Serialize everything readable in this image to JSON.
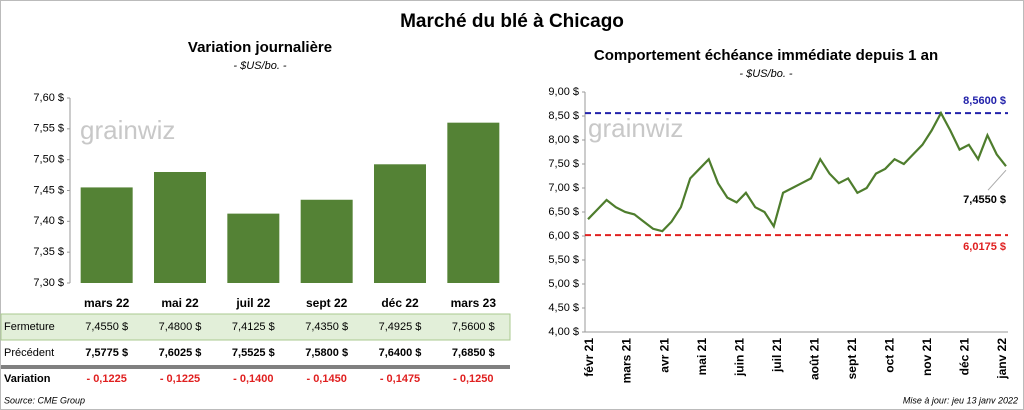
{
  "title": "Marché du blé à Chicago",
  "watermark": "grainwiz",
  "source": "Source: CME Group",
  "updated": "Mise à jour: jeu 13 janv 2022",
  "chart_data": [
    {
      "type": "bar",
      "title": "Variation journalière",
      "subtitle": "- $US/bo. -",
      "categories": [
        "mars 22",
        "mai 22",
        "juil 22",
        "sept 22",
        "déc 22",
        "mars 23"
      ],
      "values": [
        7.455,
        7.48,
        7.4125,
        7.435,
        7.4925,
        7.56
      ],
      "value_labels": [
        "7,4550 $",
        "7,4800 $",
        "7,4125 $",
        "7,4350 $",
        "7,4925 $",
        "7,5600 $"
      ],
      "color": "#548235",
      "ylim": [
        7.3,
        7.6
      ],
      "yticks": [
        {
          "value": 7.3,
          "label": "7,30 $"
        },
        {
          "value": 7.35,
          "label": "7,35 $"
        },
        {
          "value": 7.4,
          "label": "7,40 $"
        },
        {
          "value": 7.45,
          "label": "7,45 $"
        },
        {
          "value": 7.5,
          "label": "7,50 $"
        },
        {
          "value": 7.55,
          "label": "7,55 $"
        },
        {
          "value": 7.6,
          "label": "7,60 $"
        }
      ]
    },
    {
      "type": "line",
      "title": "Comportement  échéance immédiate depuis 1 an",
      "subtitle": "- $US/bo. -",
      "xticks": [
        "févr 21",
        "mars 21",
        "avr 21",
        "mai 21",
        "juin 21",
        "juil 21",
        "août 21",
        "sept 21",
        "oct 21",
        "nov 21",
        "déc 21",
        "janv 22"
      ],
      "values": [
        6.35,
        6.55,
        6.75,
        6.6,
        6.5,
        6.45,
        6.3,
        6.15,
        6.1,
        6.3,
        6.6,
        7.2,
        7.4,
        7.6,
        7.1,
        6.8,
        6.7,
        6.9,
        6.6,
        6.5,
        6.2,
        6.9,
        7.0,
        7.1,
        7.2,
        7.6,
        7.3,
        7.1,
        7.2,
        6.9,
        7.0,
        7.3,
        7.4,
        7.6,
        7.5,
        7.7,
        7.9,
        8.2,
        8.56,
        8.2,
        7.8,
        7.9,
        7.6,
        8.1,
        7.7,
        7.455
      ],
      "color": "#4e7d2d",
      "end_label": "7,4550 $",
      "reference_lines": [
        {
          "value": 8.56,
          "label": "8,5600 $",
          "color": "#2222aa"
        },
        {
          "value": 6.0175,
          "label": "6,0175 $",
          "color": "#e02020"
        }
      ],
      "ylim": [
        4,
        9
      ],
      "yticks": [
        {
          "value": 4,
          "label": "4,00 $"
        },
        {
          "value": 4.5,
          "label": "4,50 $"
        },
        {
          "value": 5,
          "label": "5,00 $"
        },
        {
          "value": 5.5,
          "label": "5,50 $"
        },
        {
          "value": 6,
          "label": "6,00 $"
        },
        {
          "value": 6.5,
          "label": "6,50 $"
        },
        {
          "value": 7,
          "label": "7,00 $"
        },
        {
          "value": 7.5,
          "label": "7,50 $"
        },
        {
          "value": 8,
          "label": "8,00 $"
        },
        {
          "value": 8.5,
          "label": "8,50 $"
        },
        {
          "value": 9,
          "label": "9,00 $"
        }
      ]
    }
  ],
  "table": {
    "fermeture_label": "Fermeture",
    "rows": [
      {
        "label": "Précédent",
        "cells": [
          "7,5775 $",
          "7,6025 $",
          "7,5525 $",
          "7,5800 $",
          "7,6400 $",
          "7,6850 $"
        ]
      },
      {
        "label": "Variation",
        "cells": [
          "- 0,1225",
          "- 0,1225",
          "- 0,1400",
          "- 0,1450",
          "- 0,1475",
          "- 0,1250"
        ]
      }
    ]
  }
}
